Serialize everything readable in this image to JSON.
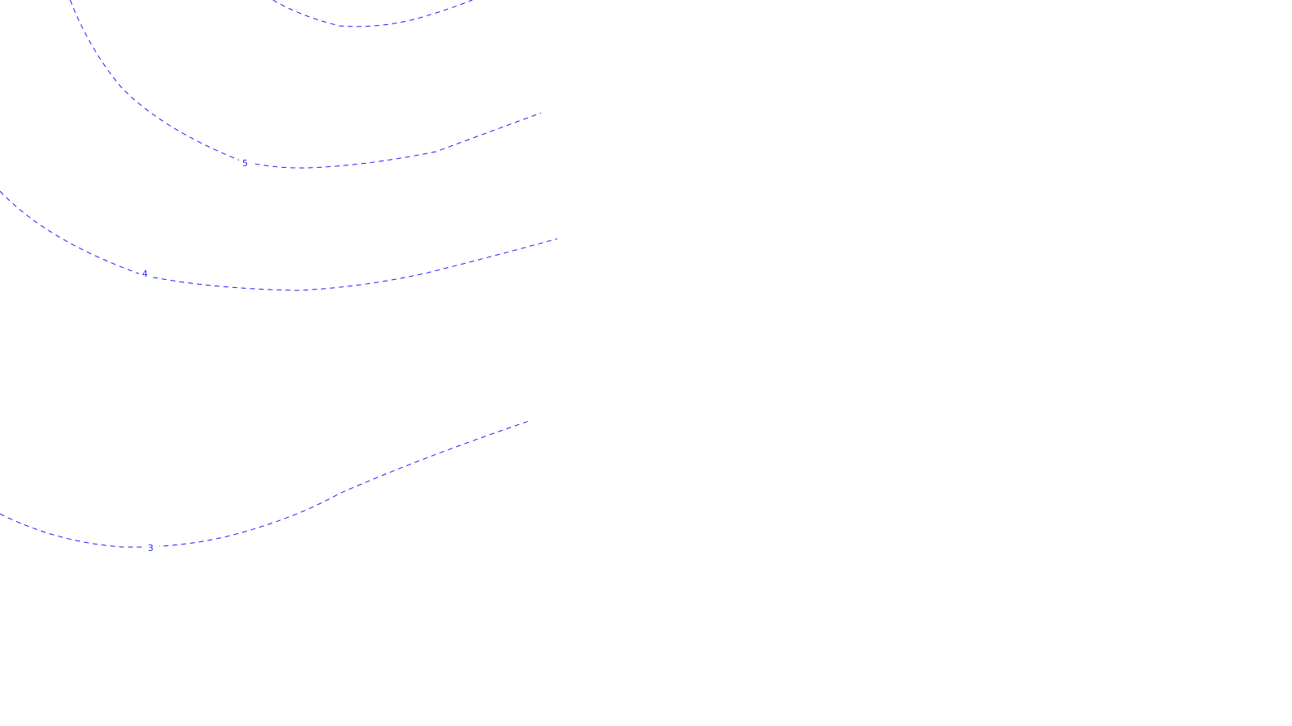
{
  "map": {
    "line_color": "#1a1aff",
    "line_style": "dashed",
    "contours": [
      {
        "id": "contour-6",
        "label": ""
      },
      {
        "id": "contour-5",
        "label": "5"
      },
      {
        "id": "contour-4",
        "label": "4"
      },
      {
        "id": "contour-3",
        "label": "3"
      }
    ]
  }
}
